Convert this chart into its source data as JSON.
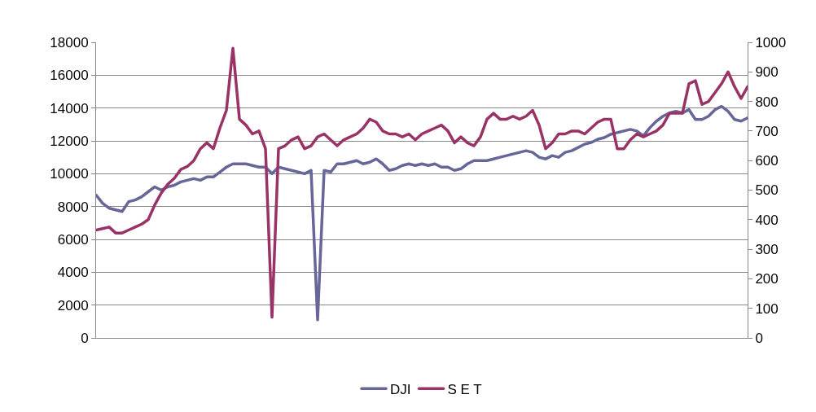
{
  "chart_data": {
    "type": "line",
    "categories": [
      null,
      null,
      null,
      null,
      null,
      null,
      null,
      null,
      null,
      null,
      null,
      null,
      null,
      null,
      null,
      null,
      null,
      null,
      null,
      null,
      null,
      null,
      null,
      null,
      null,
      null,
      null,
      null,
      null,
      null,
      null,
      null,
      null,
      null,
      null,
      null,
      null,
      null,
      null,
      null,
      null,
      null,
      null,
      null,
      null,
      null,
      null,
      null,
      null,
      null,
      null,
      null,
      null,
      null,
      null,
      null,
      null,
      null,
      null,
      null,
      null,
      null,
      null,
      null,
      null,
      null,
      null,
      null,
      null,
      null,
      null,
      null,
      null,
      null,
      null,
      null,
      null,
      null,
      null,
      null,
      null,
      null,
      null,
      null,
      null,
      null,
      null,
      null,
      null,
      null,
      null,
      null,
      null,
      null,
      null,
      null,
      null,
      null,
      null,
      null,
      null
    ],
    "series": [
      {
        "name": "DJI",
        "color": "#666699",
        "values": [
          8700,
          8200,
          7900,
          7800,
          7700,
          8300,
          8400,
          8600,
          8900,
          9200,
          9000,
          9200,
          9300,
          9500,
          9600,
          9700,
          9600,
          9800,
          9800,
          10100,
          10400,
          10600,
          10600,
          10600,
          10500,
          10400,
          10400,
          10000,
          10400,
          10300,
          10200,
          10100,
          10000,
          10200,
          1100,
          10200,
          10100,
          10600,
          10600,
          10700,
          10800,
          10600,
          10700,
          10900,
          10600,
          10200,
          10300,
          10500,
          10600,
          10500,
          10600,
          10500,
          10600,
          10400,
          10400,
          10200,
          10300,
          10600,
          10800,
          10800,
          10800,
          10900,
          11000,
          11100,
          11200,
          11300,
          11400,
          11300,
          11000,
          10900,
          11100,
          11000,
          11300,
          11400,
          11600,
          11800,
          11900,
          12100,
          12200,
          12400,
          12500,
          12600,
          12700,
          12600,
          12300,
          12800,
          13200,
          13500,
          13700,
          13800,
          13700,
          13900,
          13300,
          13300,
          13500,
          13900,
          14100,
          13800,
          13300,
          13200,
          13400
        ]
      },
      {
        "name": "S E T",
        "color": "#993366",
        "axis": "y2",
        "values": [
          365,
          370,
          375,
          355,
          355,
          365,
          375,
          385,
          400,
          450,
          490,
          520,
          540,
          570,
          580,
          600,
          640,
          660,
          640,
          710,
          770,
          980,
          740,
          720,
          690,
          700,
          640,
          70,
          640,
          650,
          670,
          680,
          640,
          650,
          680,
          690,
          670,
          650,
          670,
          680,
          690,
          710,
          740,
          730,
          700,
          690,
          690,
          680,
          690,
          670,
          690,
          700,
          710,
          720,
          700,
          660,
          680,
          660,
          650,
          680,
          740,
          760,
          740,
          740,
          750,
          740,
          750,
          770,
          720,
          640,
          660,
          690,
          690,
          700,
          700,
          690,
          710,
          730,
          740,
          740,
          640,
          640,
          670,
          690,
          680,
          690,
          700,
          720,
          760,
          760,
          760,
          860,
          870,
          790,
          800,
          830,
          860,
          900,
          850,
          810,
          850
        ]
      }
    ],
    "ylim": [
      0,
      18000
    ],
    "yticks": [
      0,
      2000,
      4000,
      6000,
      8000,
      10000,
      12000,
      14000,
      16000,
      18000
    ],
    "y2lim": [
      0,
      1000
    ],
    "y2ticks": [
      0,
      100,
      200,
      300,
      400,
      500,
      600,
      700,
      800,
      900,
      1000
    ],
    "grid": "y",
    "legend": "bottom",
    "marker": "none",
    "line_style": "solid"
  }
}
